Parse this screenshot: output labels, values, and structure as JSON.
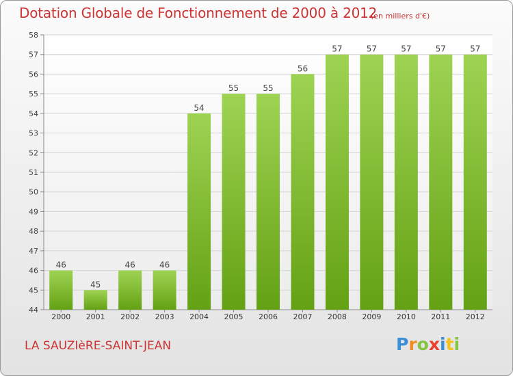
{
  "chart_data": {
    "type": "bar",
    "title": "Dotation Globale de Fonctionnement de 2000 à 2012",
    "unit_label": "(en milliers d'€)",
    "categories": [
      "2000",
      "2001",
      "2002",
      "2003",
      "2004",
      "2005",
      "2006",
      "2007",
      "2008",
      "2009",
      "2010",
      "2011",
      "2012"
    ],
    "values": [
      46,
      45,
      46,
      46,
      54,
      55,
      55,
      56,
      57,
      57,
      57,
      57,
      57
    ],
    "xlabel": "",
    "ylabel": "",
    "ylim": [
      44,
      58
    ],
    "yticks": [
      44,
      45,
      46,
      47,
      48,
      49,
      50,
      51,
      52,
      53,
      54,
      55,
      56,
      57,
      58
    ],
    "grid": true,
    "bar_color_top": "#9ed353",
    "bar_color_bottom": "#64a114"
  },
  "footer": {
    "commune": "LA SAUZIèRE-SAINT-JEAN"
  },
  "logo": {
    "text": "Proxiti",
    "letters": [
      {
        "ch": "P",
        "color": "#3a8fd6"
      },
      {
        "ch": "r",
        "color": "#f28c1e"
      },
      {
        "ch": "o",
        "color": "#86c440"
      },
      {
        "ch": "x",
        "color": "#e8412f"
      },
      {
        "ch": "i",
        "color": "#3a8fd6"
      },
      {
        "ch": "t",
        "color": "#f2c21e"
      },
      {
        "ch": "i",
        "color": "#86c440"
      }
    ]
  }
}
